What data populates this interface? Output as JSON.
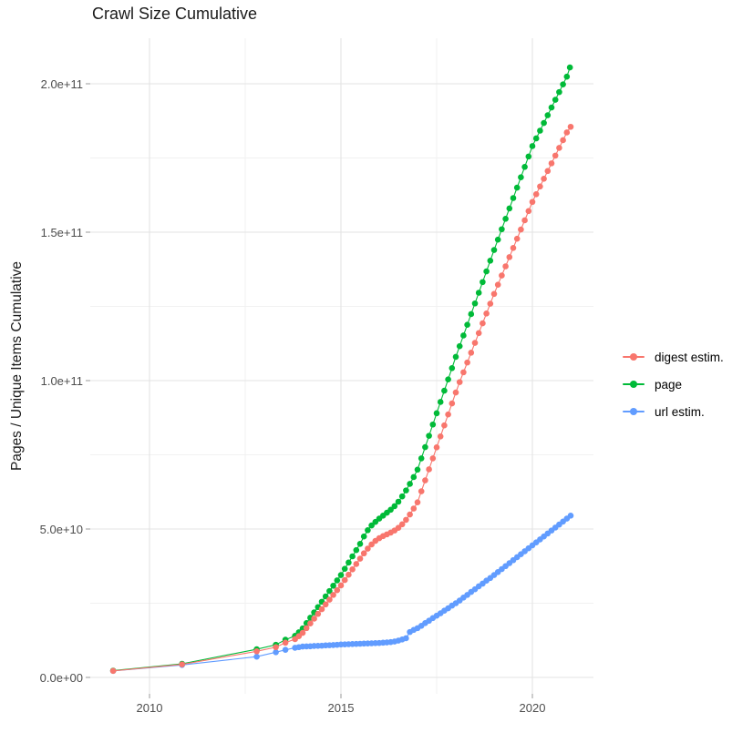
{
  "title": "Crawl Size Cumulative",
  "axes": {
    "y_title": "Pages / Unique Items Cumulative",
    "y_ticks": [
      "0.0e+00",
      "5.0e+10",
      "1.0e+11",
      "1.5e+11",
      "2.0e+11"
    ],
    "y_tick_values_e9": [
      0,
      50,
      100,
      150,
      200
    ],
    "x_ticks": [
      "2010",
      "2015",
      "2020"
    ],
    "x_tick_values": [
      2010,
      2015,
      2020
    ],
    "x_minor_values": [
      2012.5,
      2017.5
    ]
  },
  "legend": [
    {
      "label": "digest estim.",
      "color": "#F8766D"
    },
    {
      "label": "page",
      "color": "#00BA38"
    },
    {
      "label": "url estim.",
      "color": "#619CFF"
    }
  ],
  "colors": {
    "grid_major": "#e3e3e3",
    "grid_minor": "#f1f1f1",
    "tick_mark": "#9a9a9a",
    "tick_text": "#4d4d4d",
    "title_text": "#1a1a1a"
  },
  "chart_data": {
    "type": "scatter",
    "title": "Crawl Size Cumulative",
    "xlabel": "",
    "ylabel": "Pages / Unique Items Cumulative",
    "x_unit": "year",
    "value_scale": 1000000000.0,
    "xlim": [
      2008.4,
      2021.6
    ],
    "ylim_e9": [
      -5,
      215
    ],
    "grid": true,
    "legend_position": "right",
    "note": "points are [year, cumulative count in billions (1e9)]",
    "series": [
      {
        "name": "digest estim.",
        "color": "#F8766D",
        "points": [
          [
            2009.05,
            2.2
          ],
          [
            2010.85,
            4.4
          ],
          [
            2012.8,
            8.8
          ],
          [
            2013.3,
            10.2
          ],
          [
            2013.55,
            11.7
          ],
          [
            2013.8,
            12.9
          ],
          [
            2013.9,
            13.9
          ],
          [
            2014.0,
            15.0
          ],
          [
            2014.1,
            16.6
          ],
          [
            2014.2,
            18.2
          ],
          [
            2014.3,
            19.8
          ],
          [
            2014.4,
            21.4
          ],
          [
            2014.5,
            23.0
          ],
          [
            2014.6,
            24.6
          ],
          [
            2014.7,
            26.2
          ],
          [
            2014.8,
            27.8
          ],
          [
            2014.9,
            29.4
          ],
          [
            2015.0,
            31.0
          ],
          [
            2015.1,
            32.8
          ],
          [
            2015.2,
            34.6
          ],
          [
            2015.3,
            36.4
          ],
          [
            2015.4,
            38.2
          ],
          [
            2015.5,
            40.0
          ],
          [
            2015.6,
            41.8
          ],
          [
            2015.7,
            43.4
          ],
          [
            2015.8,
            44.8
          ],
          [
            2015.9,
            46.0
          ],
          [
            2016.0,
            46.9
          ],
          [
            2016.1,
            47.6
          ],
          [
            2016.2,
            48.2
          ],
          [
            2016.3,
            48.8
          ],
          [
            2016.4,
            49.5
          ],
          [
            2016.5,
            50.4
          ],
          [
            2016.6,
            51.6
          ],
          [
            2016.7,
            53.1
          ],
          [
            2016.8,
            54.9
          ],
          [
            2016.9,
            56.9
          ],
          [
            2017.0,
            59.0
          ],
          [
            2017.1,
            62.7
          ],
          [
            2017.2,
            66.4
          ],
          [
            2017.3,
            70.1
          ],
          [
            2017.4,
            73.8
          ],
          [
            2017.5,
            77.5
          ],
          [
            2017.6,
            81.2
          ],
          [
            2017.7,
            84.9
          ],
          [
            2017.8,
            88.6
          ],
          [
            2017.9,
            92.3
          ],
          [
            2018.0,
            96.0
          ],
          [
            2018.1,
            99.5
          ],
          [
            2018.2,
            102.8
          ],
          [
            2018.3,
            106.1
          ],
          [
            2018.4,
            109.4
          ],
          [
            2018.5,
            112.7
          ],
          [
            2018.6,
            116.0
          ],
          [
            2018.7,
            119.3
          ],
          [
            2018.8,
            122.6
          ],
          [
            2018.9,
            125.9
          ],
          [
            2019.0,
            129.2
          ],
          [
            2019.1,
            132.3
          ],
          [
            2019.2,
            135.4
          ],
          [
            2019.3,
            138.5
          ],
          [
            2019.4,
            141.6
          ],
          [
            2019.5,
            144.7
          ],
          [
            2019.6,
            147.8
          ],
          [
            2019.7,
            150.9
          ],
          [
            2019.8,
            154.0
          ],
          [
            2019.9,
            157.1
          ],
          [
            2020.0,
            160.2
          ],
          [
            2020.1,
            162.8
          ],
          [
            2020.2,
            165.4
          ],
          [
            2020.3,
            168.0
          ],
          [
            2020.4,
            170.6
          ],
          [
            2020.5,
            173.2
          ],
          [
            2020.6,
            175.8
          ],
          [
            2020.7,
            178.4
          ],
          [
            2020.8,
            181.0
          ],
          [
            2020.9,
            183.6
          ],
          [
            2021.0,
            185.5
          ]
        ]
      },
      {
        "name": "page",
        "color": "#00BA38",
        "points": [
          [
            2009.05,
            2.3
          ],
          [
            2010.85,
            4.6
          ],
          [
            2012.8,
            9.5
          ],
          [
            2013.3,
            11.0
          ],
          [
            2013.55,
            12.7
          ],
          [
            2013.8,
            14.0
          ],
          [
            2013.9,
            15.2
          ],
          [
            2014.0,
            16.5
          ],
          [
            2014.1,
            18.3
          ],
          [
            2014.2,
            20.1
          ],
          [
            2014.3,
            21.9
          ],
          [
            2014.4,
            23.7
          ],
          [
            2014.5,
            25.5
          ],
          [
            2014.6,
            27.3
          ],
          [
            2014.7,
            29.1
          ],
          [
            2014.8,
            30.9
          ],
          [
            2014.9,
            32.7
          ],
          [
            2015.0,
            34.5
          ],
          [
            2015.1,
            36.6
          ],
          [
            2015.2,
            38.7
          ],
          [
            2015.3,
            40.8
          ],
          [
            2015.4,
            42.9
          ],
          [
            2015.5,
            45.0
          ],
          [
            2015.6,
            47.5
          ],
          [
            2015.7,
            49.6
          ],
          [
            2015.8,
            51.2
          ],
          [
            2015.9,
            52.4
          ],
          [
            2016.0,
            53.5
          ],
          [
            2016.1,
            54.5
          ],
          [
            2016.2,
            55.5
          ],
          [
            2016.3,
            56.5
          ],
          [
            2016.4,
            57.7
          ],
          [
            2016.5,
            59.2
          ],
          [
            2016.6,
            61.0
          ],
          [
            2016.7,
            63.0
          ],
          [
            2016.8,
            65.2
          ],
          [
            2016.9,
            67.5
          ],
          [
            2017.0,
            70.0
          ],
          [
            2017.1,
            73.8
          ],
          [
            2017.2,
            77.6
          ],
          [
            2017.3,
            81.4
          ],
          [
            2017.4,
            85.2
          ],
          [
            2017.5,
            89.0
          ],
          [
            2017.6,
            92.8
          ],
          [
            2017.7,
            96.6
          ],
          [
            2017.8,
            100.4
          ],
          [
            2017.9,
            104.2
          ],
          [
            2018.0,
            108.0
          ],
          [
            2018.1,
            111.6
          ],
          [
            2018.2,
            115.2
          ],
          [
            2018.3,
            118.8
          ],
          [
            2018.4,
            122.4
          ],
          [
            2018.5,
            126.0
          ],
          [
            2018.6,
            129.6
          ],
          [
            2018.7,
            133.2
          ],
          [
            2018.8,
            136.8
          ],
          [
            2018.9,
            140.4
          ],
          [
            2019.0,
            144.0
          ],
          [
            2019.1,
            147.5
          ],
          [
            2019.2,
            151.0
          ],
          [
            2019.3,
            154.5
          ],
          [
            2019.4,
            158.0
          ],
          [
            2019.5,
            161.5
          ],
          [
            2019.6,
            165.0
          ],
          [
            2019.7,
            168.5
          ],
          [
            2019.8,
            172.0
          ],
          [
            2019.9,
            175.5
          ],
          [
            2020.0,
            179.0
          ],
          [
            2020.1,
            181.6
          ],
          [
            2020.2,
            184.2
          ],
          [
            2020.3,
            186.8
          ],
          [
            2020.4,
            189.4
          ],
          [
            2020.5,
            192.0
          ],
          [
            2020.6,
            194.6
          ],
          [
            2020.7,
            197.2
          ],
          [
            2020.8,
            199.8
          ],
          [
            2020.9,
            202.4
          ],
          [
            2020.98,
            205.5
          ]
        ]
      },
      {
        "name": "url estim.",
        "color": "#619CFF",
        "points": [
          [
            2009.05,
            2.2
          ],
          [
            2010.85,
            4.2
          ],
          [
            2012.8,
            7.0
          ],
          [
            2013.3,
            8.5
          ],
          [
            2013.55,
            9.3
          ],
          [
            2013.8,
            10.0
          ],
          [
            2013.9,
            10.2
          ],
          [
            2014.0,
            10.4
          ],
          [
            2014.1,
            10.45
          ],
          [
            2014.2,
            10.5
          ],
          [
            2014.3,
            10.6
          ],
          [
            2014.4,
            10.65
          ],
          [
            2014.5,
            10.7
          ],
          [
            2014.6,
            10.8
          ],
          [
            2014.7,
            10.85
          ],
          [
            2014.8,
            10.9
          ],
          [
            2014.9,
            11.0
          ],
          [
            2015.0,
            11.1
          ],
          [
            2015.1,
            11.15
          ],
          [
            2015.2,
            11.2
          ],
          [
            2015.3,
            11.25
          ],
          [
            2015.4,
            11.3
          ],
          [
            2015.5,
            11.35
          ],
          [
            2015.6,
            11.4
          ],
          [
            2015.7,
            11.45
          ],
          [
            2015.8,
            11.5
          ],
          [
            2015.9,
            11.55
          ],
          [
            2016.0,
            11.6
          ],
          [
            2016.1,
            11.7
          ],
          [
            2016.2,
            11.8
          ],
          [
            2016.3,
            11.9
          ],
          [
            2016.4,
            12.1
          ],
          [
            2016.5,
            12.4
          ],
          [
            2016.6,
            12.8
          ],
          [
            2016.7,
            13.2
          ],
          [
            2016.8,
            15.3
          ],
          [
            2016.9,
            16.0
          ],
          [
            2017.0,
            16.6
          ],
          [
            2017.1,
            17.4
          ],
          [
            2017.2,
            18.3
          ],
          [
            2017.3,
            19.1
          ],
          [
            2017.4,
            20.0
          ],
          [
            2017.5,
            20.8
          ],
          [
            2017.6,
            21.6
          ],
          [
            2017.7,
            22.5
          ],
          [
            2017.8,
            23.3
          ],
          [
            2017.9,
            24.2
          ],
          [
            2018.0,
            25.0
          ],
          [
            2018.1,
            25.9
          ],
          [
            2018.2,
            26.9
          ],
          [
            2018.3,
            27.8
          ],
          [
            2018.4,
            28.8
          ],
          [
            2018.5,
            29.7
          ],
          [
            2018.6,
            30.7
          ],
          [
            2018.7,
            31.6
          ],
          [
            2018.8,
            32.6
          ],
          [
            2018.9,
            33.5
          ],
          [
            2019.0,
            34.5
          ],
          [
            2019.1,
            35.5
          ],
          [
            2019.2,
            36.5
          ],
          [
            2019.3,
            37.5
          ],
          [
            2019.4,
            38.5
          ],
          [
            2019.5,
            39.5
          ],
          [
            2019.6,
            40.5
          ],
          [
            2019.7,
            41.5
          ],
          [
            2019.8,
            42.5
          ],
          [
            2019.9,
            43.5
          ],
          [
            2020.0,
            44.5
          ],
          [
            2020.1,
            45.5
          ],
          [
            2020.2,
            46.5
          ],
          [
            2020.3,
            47.5
          ],
          [
            2020.4,
            48.5
          ],
          [
            2020.5,
            49.5
          ],
          [
            2020.6,
            50.5
          ],
          [
            2020.7,
            51.5
          ],
          [
            2020.8,
            52.5
          ],
          [
            2020.9,
            53.5
          ],
          [
            2021.0,
            54.5
          ]
        ]
      }
    ]
  }
}
